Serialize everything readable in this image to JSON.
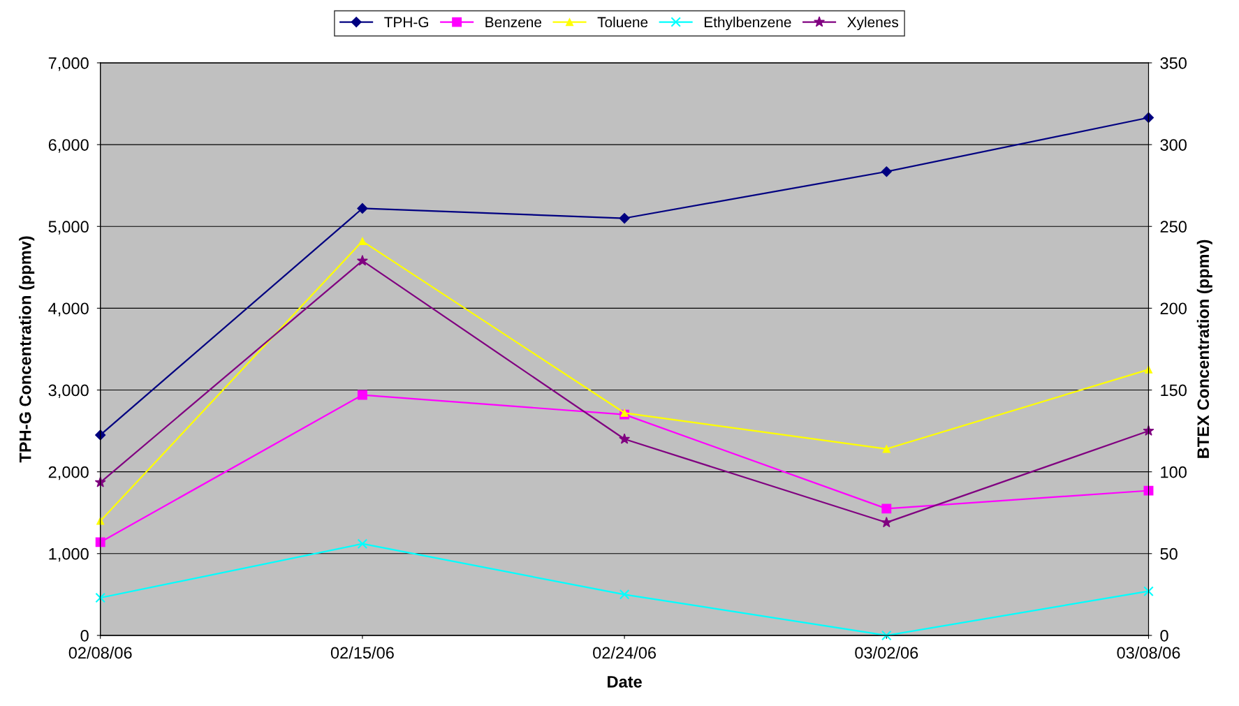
{
  "chart_data": {
    "type": "line",
    "xlabel": "Date",
    "ylabel": "TPH-G Concentration (ppmv)",
    "y2label": "BTEX Concentration (ppmv)",
    "categories": [
      "02/08/06",
      "02/15/06",
      "02/24/06",
      "03/02/06",
      "03/08/06"
    ],
    "series": [
      {
        "name": "TPH-G",
        "color": "#000080",
        "marker": "diamond",
        "values": [
          2450,
          5220,
          5100,
          5670,
          6330
        ]
      },
      {
        "name": "Benzene",
        "color": "#ff00ff",
        "marker": "square",
        "axis": "y2",
        "values": [
          57,
          147,
          135,
          77.5,
          88.5
        ]
      },
      {
        "name": "Toluene",
        "color": "#ffff00",
        "marker": "triangle",
        "axis": "y2",
        "values": [
          70,
          241,
          136,
          114,
          162.5
        ]
      },
      {
        "name": "Ethylbenzene",
        "color": "#00ffff",
        "marker": "cross",
        "axis": "y2",
        "values": [
          23,
          56,
          25,
          0,
          27
        ]
      },
      {
        "name": "Xylenes",
        "color": "#800080",
        "marker": "star",
        "axis": "y2",
        "values": [
          93.5,
          229,
          120,
          69,
          125
        ]
      }
    ],
    "ylim": [
      0,
      7000
    ],
    "yticks": [
      {
        "value": 0,
        "label": "0"
      },
      {
        "value": 1000,
        "label": "1,000"
      },
      {
        "value": 2000,
        "label": "2,000"
      },
      {
        "value": 3000,
        "label": "3,000"
      },
      {
        "value": 4000,
        "label": "4,000"
      },
      {
        "value": 5000,
        "label": "5,000"
      },
      {
        "value": 6000,
        "label": "6,000"
      },
      {
        "value": 7000,
        "label": "7,000"
      }
    ],
    "y2lim": [
      0,
      350
    ],
    "y2ticks": [
      0,
      50,
      100,
      150,
      200,
      250,
      300,
      350
    ],
    "grid": "y",
    "legend": "top",
    "line_style": "solid"
  }
}
